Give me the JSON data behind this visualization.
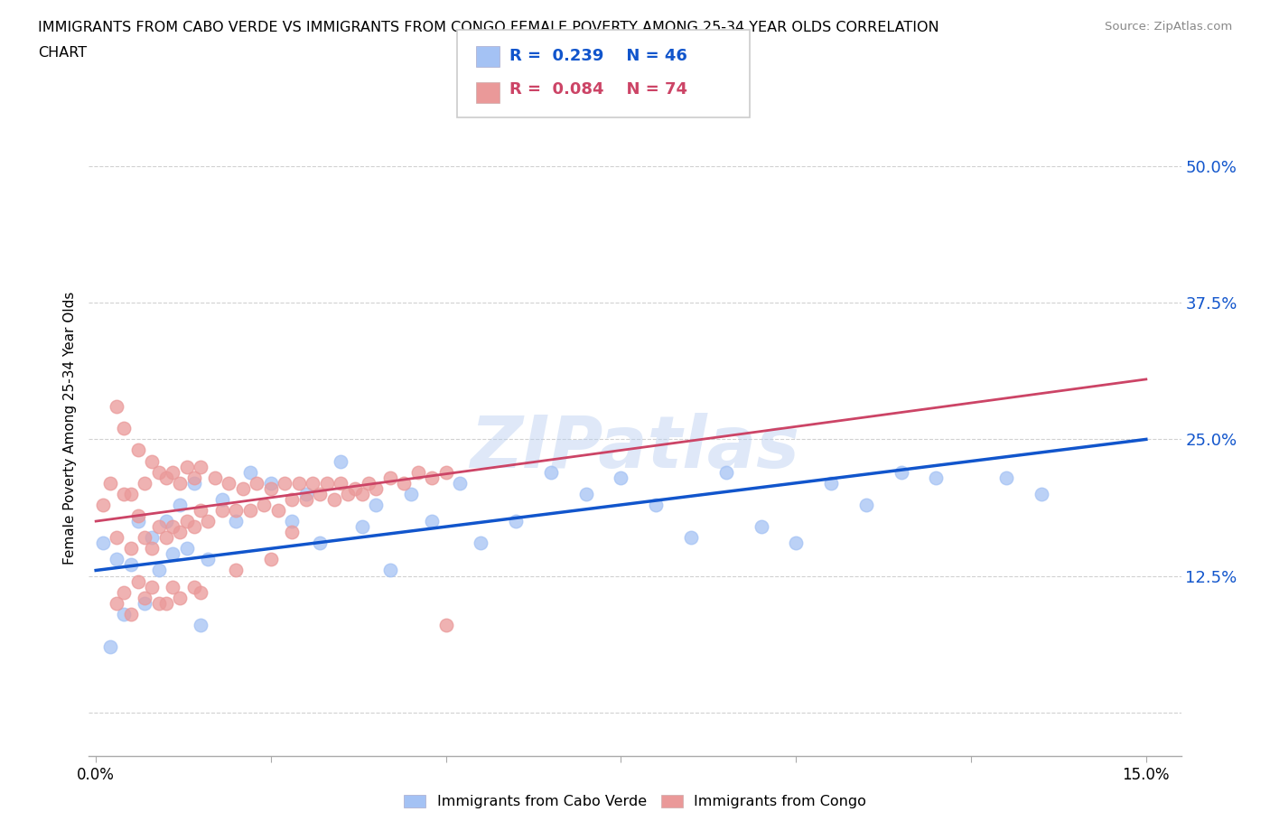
{
  "title_line1": "IMMIGRANTS FROM CABO VERDE VS IMMIGRANTS FROM CONGO FEMALE POVERTY AMONG 25-34 YEAR OLDS CORRELATION",
  "title_line2": "CHART",
  "source": "Source: ZipAtlas.com",
  "ylabel": "Female Poverty Among 25-34 Year Olds",
  "xlim": [
    -0.001,
    0.155
  ],
  "ylim": [
    -0.04,
    0.56
  ],
  "yticks": [
    0.0,
    0.125,
    0.25,
    0.375,
    0.5
  ],
  "yticklabels": [
    "",
    "12.5%",
    "25.0%",
    "37.5%",
    "50.0%"
  ],
  "cabo_verde_color": "#a4c2f4",
  "congo_color": "#ea9999",
  "cabo_verde_line_color": "#1155cc",
  "congo_line_color": "#cc4466",
  "watermark": "ZIPatlas",
  "legend_label_1": "Immigrants from Cabo Verde",
  "legend_label_2": "Immigrants from Congo",
  "cabo_verde_x": [
    0.001,
    0.002,
    0.003,
    0.004,
    0.005,
    0.006,
    0.007,
    0.008,
    0.009,
    0.01,
    0.011,
    0.012,
    0.013,
    0.014,
    0.015,
    0.016,
    0.018,
    0.02,
    0.022,
    0.025,
    0.028,
    0.03,
    0.032,
    0.035,
    0.038,
    0.04,
    0.042,
    0.045,
    0.048,
    0.052,
    0.055,
    0.06,
    0.065,
    0.07,
    0.075,
    0.08,
    0.085,
    0.09,
    0.095,
    0.1,
    0.105,
    0.11,
    0.115,
    0.12,
    0.13,
    0.135
  ],
  "cabo_verde_y": [
    0.155,
    0.06,
    0.14,
    0.09,
    0.135,
    0.175,
    0.1,
    0.16,
    0.13,
    0.175,
    0.145,
    0.19,
    0.15,
    0.21,
    0.08,
    0.14,
    0.195,
    0.175,
    0.22,
    0.21,
    0.175,
    0.2,
    0.155,
    0.23,
    0.17,
    0.19,
    0.13,
    0.2,
    0.175,
    0.21,
    0.155,
    0.175,
    0.22,
    0.2,
    0.215,
    0.19,
    0.16,
    0.22,
    0.17,
    0.155,
    0.21,
    0.19,
    0.22,
    0.215,
    0.215,
    0.2
  ],
  "congo_x": [
    0.001,
    0.002,
    0.003,
    0.003,
    0.004,
    0.004,
    0.005,
    0.005,
    0.006,
    0.006,
    0.007,
    0.007,
    0.008,
    0.008,
    0.009,
    0.009,
    0.01,
    0.01,
    0.011,
    0.011,
    0.012,
    0.012,
    0.013,
    0.013,
    0.014,
    0.014,
    0.015,
    0.015,
    0.016,
    0.017,
    0.018,
    0.019,
    0.02,
    0.021,
    0.022,
    0.023,
    0.024,
    0.025,
    0.026,
    0.027,
    0.028,
    0.029,
    0.03,
    0.031,
    0.032,
    0.033,
    0.034,
    0.035,
    0.036,
    0.037,
    0.038,
    0.039,
    0.04,
    0.042,
    0.044,
    0.046,
    0.048,
    0.05,
    0.003,
    0.004,
    0.005,
    0.006,
    0.007,
    0.008,
    0.009,
    0.01,
    0.011,
    0.012,
    0.014,
    0.015,
    0.02,
    0.025,
    0.028,
    0.05
  ],
  "congo_y": [
    0.19,
    0.21,
    0.16,
    0.28,
    0.2,
    0.26,
    0.15,
    0.2,
    0.18,
    0.24,
    0.16,
    0.21,
    0.15,
    0.23,
    0.17,
    0.22,
    0.16,
    0.215,
    0.17,
    0.22,
    0.165,
    0.21,
    0.175,
    0.225,
    0.17,
    0.215,
    0.185,
    0.225,
    0.175,
    0.215,
    0.185,
    0.21,
    0.185,
    0.205,
    0.185,
    0.21,
    0.19,
    0.205,
    0.185,
    0.21,
    0.195,
    0.21,
    0.195,
    0.21,
    0.2,
    0.21,
    0.195,
    0.21,
    0.2,
    0.205,
    0.2,
    0.21,
    0.205,
    0.215,
    0.21,
    0.22,
    0.215,
    0.22,
    0.1,
    0.11,
    0.09,
    0.12,
    0.105,
    0.115,
    0.1,
    0.1,
    0.115,
    0.105,
    0.115,
    0.11,
    0.13,
    0.14,
    0.165,
    0.08
  ],
  "cabo_verde_line_y_at_0": 0.13,
  "cabo_verde_line_y_at_015": 0.25,
  "congo_line_y_at_0": 0.175,
  "congo_line_y_at_015": 0.305
}
